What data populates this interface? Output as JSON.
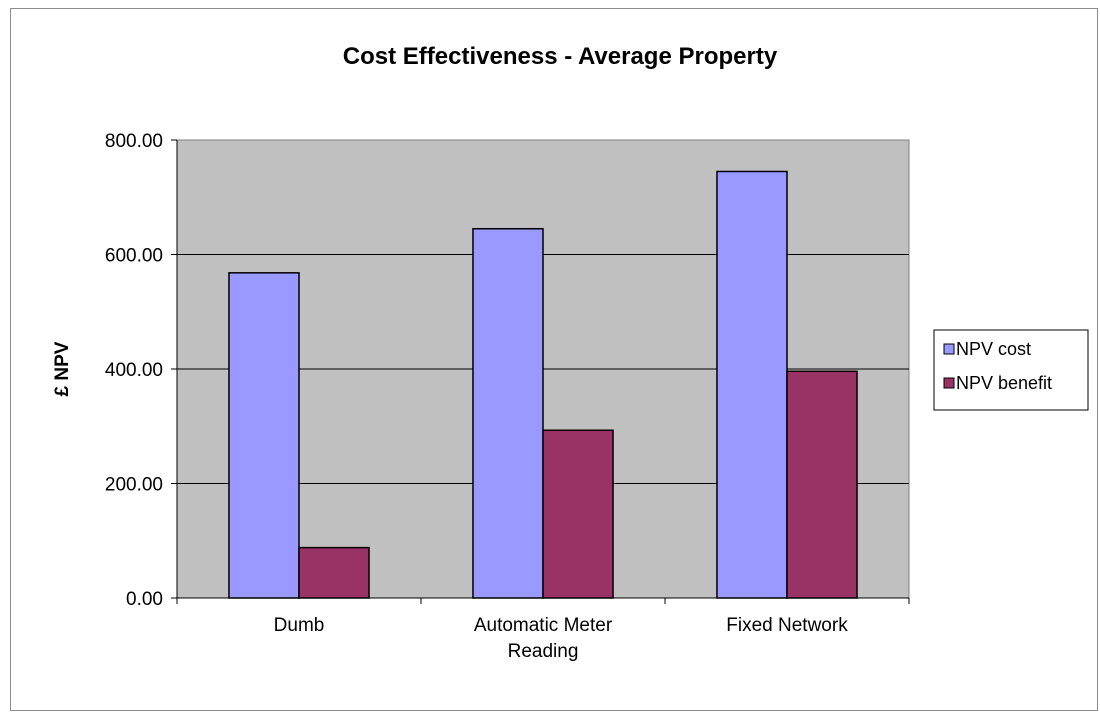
{
  "chart_data": {
    "type": "bar",
    "title": "Cost Effectiveness - Average Property",
    "xlabel": "",
    "ylabel": "£ NPV",
    "categories": [
      [
        "Dumb"
      ],
      [
        "Automatic Meter",
        "Reading"
      ],
      [
        "Fixed Network"
      ]
    ],
    "series": [
      {
        "name": "NPV cost",
        "values": [
          568,
          645,
          745
        ]
      },
      {
        "name": "NPV benefit",
        "values": [
          88,
          293,
          396
        ]
      }
    ],
    "ylim": [
      0,
      800
    ],
    "yticks": [
      "0.00",
      "200.00",
      "400.00",
      "600.00",
      "800.00"
    ],
    "grid": true,
    "legend_position": "right",
    "colors": {
      "plot_background": "#c0c0c0",
      "series": [
        "#9999ff",
        "#993366"
      ],
      "gridline": "#000000",
      "frame": "#8c8c8c"
    }
  }
}
